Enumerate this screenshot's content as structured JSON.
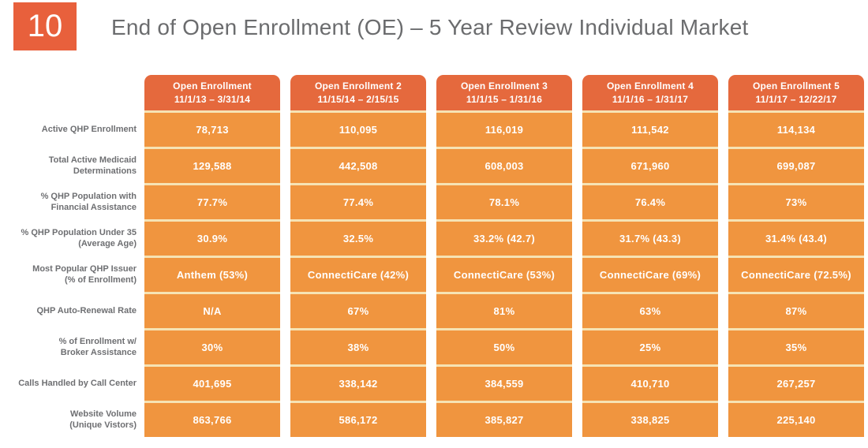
{
  "slide": {
    "number": "10",
    "title": "End of Open Enrollment (OE) – 5 Year Review Individual Market"
  },
  "colors": {
    "badge_bg": "#E8603C",
    "header_bg": "#E5693D",
    "cell_bg": "#F0953F",
    "divider": "#F6E3B4",
    "label_text": "#6E6F72",
    "title_text": "#6B6C6E",
    "cell_text": "#FFFFFF"
  },
  "table": {
    "columns": [
      {
        "title": "Open Enrollment",
        "dates": "11/1/13 – 3/31/14"
      },
      {
        "title": "Open Enrollment 2",
        "dates": "11/15/14 – 2/15/15"
      },
      {
        "title": "Open Enrollment 3",
        "dates": "11/1/15 – 1/31/16"
      },
      {
        "title": "Open Enrollment 4",
        "dates": "11/1/16 – 1/31/17"
      },
      {
        "title": "Open Enrollment 5",
        "dates": "11/1/17 – 12/22/17"
      }
    ],
    "rows": [
      {
        "label": [
          "Active QHP Enrollment"
        ],
        "values": [
          "78,713",
          "110,095",
          "116,019",
          "111,542",
          "114,134"
        ]
      },
      {
        "label": [
          "Total Active Medicaid",
          "Determinations"
        ],
        "values": [
          "129,588",
          "442,508",
          "608,003",
          "671,960",
          "699,087"
        ]
      },
      {
        "label": [
          "% QHP Population with",
          "Financial Assistance"
        ],
        "values": [
          "77.7%",
          "77.4%",
          "78.1%",
          "76.4%",
          "73%"
        ]
      },
      {
        "label": [
          "% QHP Population Under 35",
          "(Average Age)"
        ],
        "values": [
          "30.9%",
          "32.5%",
          "33.2% (42.7)",
          "31.7% (43.3)",
          "31.4% (43.4)"
        ]
      },
      {
        "label": [
          "Most Popular QHP Issuer",
          "(% of Enrollment)"
        ],
        "values": [
          "Anthem (53%)",
          "ConnectiCare (42%)",
          "ConnectiCare (53%)",
          "ConnectiCare (69%)",
          "ConnectiCare (72.5%)"
        ]
      },
      {
        "label": [
          "QHP Auto-Renewal Rate"
        ],
        "values": [
          "N/A",
          "67%",
          "81%",
          "63%",
          "87%"
        ]
      },
      {
        "label": [
          "% of Enrollment w/",
          "Broker Assistance"
        ],
        "values": [
          "30%",
          "38%",
          "50%",
          "25%",
          "35%"
        ]
      },
      {
        "label": [
          "Calls Handled by Call Center"
        ],
        "values": [
          "401,695",
          "338,142",
          "384,559",
          "410,710",
          "267,257"
        ]
      },
      {
        "label": [
          "Website Volume",
          "(Unique Vistors)"
        ],
        "values": [
          "863,766",
          "586,172",
          "385,827",
          "338,825",
          "225,140"
        ]
      }
    ]
  }
}
